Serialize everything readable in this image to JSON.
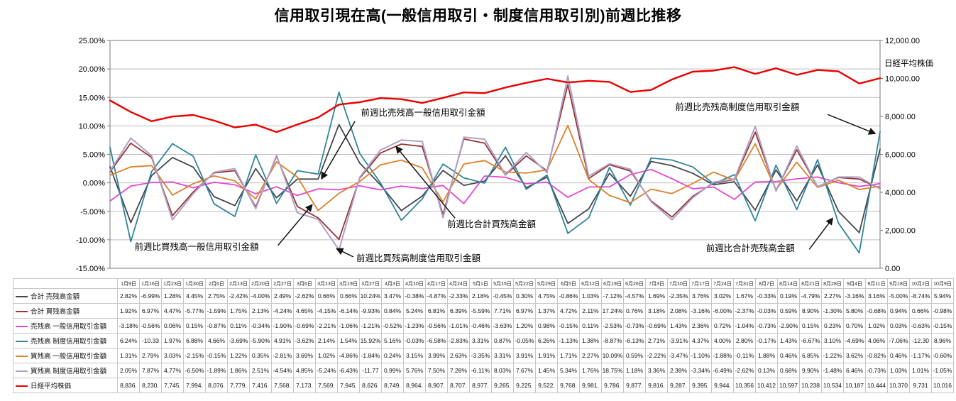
{
  "chart_data": {
    "type": "line",
    "title": "信用取引現在高(一般信用取引・制度信用取引別)前週比推移",
    "grid": true,
    "legend_position": "table-left",
    "left_axis": {
      "min": -15,
      "max": 25,
      "step": 5,
      "ticks": [
        "25.00%",
        "20.00%",
        "15.00%",
        "10.00%",
        "5.00%",
        "0.00%",
        "-5.00%",
        "-10.00%",
        "-15.00%"
      ]
    },
    "right_axis": {
      "min": 0,
      "max": 12000,
      "step": 2000,
      "label": "日経平均株価",
      "ticks": [
        "12,000.00",
        "10,000.00",
        "8,000.00",
        "6,000.00",
        "4,000.00",
        "2,000.00",
        "0.00"
      ]
    },
    "categories": [
      "1月9日",
      "1月16日",
      "1月23日",
      "1月30日",
      "2月6日",
      "2月13日",
      "2月20日",
      "2月27日",
      "3月6日",
      "3月13日",
      "3月19日",
      "3月27日",
      "4月3日",
      "4月10日",
      "4月17日",
      "4月24日",
      "5月1日",
      "5月15日",
      "5月22日",
      "5月29日",
      "6月5日",
      "6月12日",
      "6月19日",
      "6月26日",
      "7月3日",
      "7月10日",
      "7月17日",
      "7月24日",
      "7月31日",
      "8月7日",
      "8月14日",
      "8月21日",
      "8月28日",
      "9月4日",
      "9月11日",
      "9月18日",
      "10月2日",
      "10月9日"
    ],
    "series": [
      {
        "key": "total-sell-balance",
        "name": "合計 売残高金額",
        "color": "#45464f",
        "axis": "left",
        "width": 1.8,
        "values": [
          "2.82%",
          "-6.99%",
          "1.28%",
          "4.45%",
          "2.75%",
          "-2.42%",
          "-4.00%",
          "2.49%",
          "-2.62%",
          "0.66%",
          "0.66%",
          "10.24%",
          "3.47%",
          "-0.38%",
          "-4.87%",
          "-2.33%",
          "2.18%",
          "-0.45%",
          "0.30%",
          "4.75%",
          "-0.86%",
          "1.03%",
          "-7.12%",
          "-4.57%",
          "1.69%",
          "-2.35%",
          "3.76%",
          "3.02%",
          "1.67%",
          "-0.33%",
          "0.19%",
          "-4.79%",
          "2.27%",
          "-3.16%",
          "3.16%",
          "-5.00%",
          "-8.74%",
          "5.94%"
        ]
      },
      {
        "key": "total-buy-balance",
        "name": "合計 買残高金額",
        "color": "#943634",
        "axis": "left",
        "width": 1.8,
        "values": [
          "1.92%",
          "6.97%",
          "4.47%",
          "-5.77%",
          "-1.59%",
          "1.75%",
          "2.13%",
          "-4.24%",
          "4.65%",
          "-4.15%",
          "-6.14%",
          "-9.93%",
          "0.84%",
          "5.24%",
          "6.81%",
          "6.39%",
          "-5.59%",
          "7.71%",
          "6.97%",
          "1.37%",
          "4.72%",
          "2.11%",
          "17.24%",
          "0.76%",
          "3.18%",
          "2.08%",
          "-3.16%",
          "-6.00%",
          "-2.37%",
          "-0.03%",
          "0.59%",
          "8.90%",
          "-1.30%",
          "5.80%",
          "-0.68%",
          "0.94%",
          "0.66%",
          "-0.98%"
        ]
      },
      {
        "key": "sell-general-margin",
        "name": "売残高 一般信用取引金額",
        "color": "#e545d5",
        "axis": "left",
        "width": 1.8,
        "values": [
          "-3.18%",
          "-0.56%",
          "0.06%",
          "0.15%",
          "-0.87%",
          "0.11%",
          "-0.34%",
          "-1.90%",
          "-0.69%",
          "-2.21%",
          "-1.06%",
          "-1.21%",
          "-0.52%",
          "-1.23%",
          "-0.56%",
          "-1.01%",
          "-0.46%",
          "-3.63%",
          "1.20%",
          "0.98%",
          "-0.15%",
          "0.11%",
          "-2.53%",
          "-0.73%",
          "-0.69%",
          "1.43%",
          "2.36%",
          "0.72%",
          "-1.04%",
          "-0.73%",
          "-2.90%",
          "0.15%",
          "0.23%",
          "0.70%",
          "1.02%",
          "0.03%",
          "-0.63%",
          "-0.15%"
        ]
      },
      {
        "key": "sell-standardized-margin",
        "name": "売残高 制度信用取引金額",
        "color": "#31859b",
        "axis": "left",
        "width": 1.8,
        "values": [
          "6.24%",
          "-10.33",
          "1.97%",
          "6.88%",
          "4.66%",
          "-3.69%",
          "-5.90%",
          "4.91%",
          "-3.62%",
          "2.14%",
          "1.54%",
          "15.92%",
          "5.16%",
          "-0.03%",
          "-6.58%",
          "-2.83%",
          "3.31%",
          "0.87%",
          "-0.05%",
          "6.26%",
          "-1.13%",
          "1.38%",
          "-8.87%",
          "-6.13%",
          "2.71%",
          "-3.91%",
          "4.37%",
          "4.00%",
          "2.80%",
          "-0.17%",
          "1.43%",
          "-6.67%",
          "3.10%",
          "-4.69%",
          "4.06%",
          "-7.06%",
          "-12.30",
          "8.96%"
        ]
      },
      {
        "key": "buy-general-margin",
        "name": "買残高 一般信用取引金額",
        "color": "#d9822b",
        "axis": "left",
        "width": 1.8,
        "values": [
          "1.31%",
          "2.79%",
          "3.03%",
          "-2.15%",
          "-0.15%",
          "1.22%",
          "0.35%",
          "-2.81%",
          "3.69%",
          "1.02%",
          "-4.86%",
          "-1.84%",
          "0.24%",
          "3.15%",
          "3.99%",
          "2.63%",
          "-3.35%",
          "3.31%",
          "3.91%",
          "1.91%",
          "1.71%",
          "2.27%",
          "10.09%",
          "0.59%",
          "-2.22%",
          "-3.47%",
          "-1.10%",
          "-1.88%",
          "-0.11%",
          "1.88%",
          "0.46%",
          "6.85%",
          "-1.22%",
          "3.62%",
          "-0.82%",
          "0.46%",
          "-1.17%",
          "-0.60%"
        ]
      },
      {
        "key": "buy-standardized-margin",
        "name": "買残高 制度信用取引金額",
        "color": "#b1a0c7",
        "axis": "left",
        "width": 2,
        "values": [
          "2.05%",
          "7.87%",
          "4.77%",
          "-6.50%",
          "-1.89%",
          "1.86%",
          "2.51%",
          "-4.54%",
          "4.85%",
          "-5.24%",
          "-6.43%",
          "-11.77",
          "0.99%",
          "5.76%",
          "7.50%",
          "7.28%",
          "-6.11%",
          "8.03%",
          "7.67%",
          "1.45%",
          "5.34%",
          "1.76%",
          "18.75%",
          "1.18%",
          "3.36%",
          "2.38%",
          "-3.34%",
          "-6.49%",
          "-2.62%",
          "0.13%",
          "0.68%",
          "9.90%",
          "-1.48%",
          "6.46%",
          "-0.73%",
          "1.03%",
          "1.01%",
          "-1.05%"
        ]
      },
      {
        "key": "nikkei-average",
        "name": "日経平均株価",
        "color": "#ea0000",
        "axis": "right",
        "width": 2.4,
        "values": [
          "8,836.",
          "8,230.",
          "7,745.",
          "7,994.",
          "8,076.",
          "7,779.",
          "7,416.",
          "7,568.",
          "7,173.",
          "7,569.",
          "7,945.",
          "8,626.",
          "8,749.",
          "8,964.",
          "8,907.",
          "8,707.",
          "8,977.",
          "9,265.",
          "9,225.",
          "9,522.",
          "9,768.",
          "9,981.",
          "9,786.",
          "9,877.",
          "9,816.",
          "9,287.",
          "9,395.",
          "9,944.",
          "10,356",
          "10,412",
          "10,597",
          "10,238",
          "10,534",
          "10,187",
          "10,444",
          "10,370",
          "9,731",
          "10,016"
        ]
      }
    ],
    "annotations": [
      {
        "key": "sell-general-margin",
        "text": "前週比売残高一般信用取引金額",
        "label_x": 0.324,
        "label_y": 0.296,
        "tail_x": 0.318,
        "tail_y": 0.355,
        "tip_x": 0.275,
        "tip_y": 0.605
      },
      {
        "key": "sell-standardized-margin",
        "text": "前週比売残高制度信用取引金額",
        "label_x": 0.732,
        "label_y": 0.272,
        "tail_x": 0.932,
        "tail_y": 0.325,
        "tip_x": 0.993,
        "tip_y": 0.408
      },
      {
        "key": "total-buy-balance",
        "text": "前週比合計買残高金額",
        "label_x": 0.436,
        "label_y": 0.785,
        "tail_x": 0.448,
        "tail_y": 0.78,
        "tip_x": 0.372,
        "tip_y": 0.468
      },
      {
        "key": "buy-general-margin",
        "text": "前週比買残高一般信用取引金額",
        "label_x": 0.03,
        "label_y": 0.885,
        "tail_x": 0.218,
        "tail_y": 0.9,
        "tip_x": 0.262,
        "tip_y": 0.723
      },
      {
        "key": "buy-standardized-margin",
        "text": "前週比買残高制度信用取引金額",
        "label_x": 0.318,
        "label_y": 0.935,
        "tail_x": 0.316,
        "tail_y": 0.95,
        "tip_x": 0.295,
        "tip_y": 0.915
      },
      {
        "key": "total-sell-balance",
        "text": "前週比合計売残高金額",
        "label_x": 0.772,
        "label_y": 0.89,
        "tail_x": 0.908,
        "tail_y": 0.917,
        "tip_x": 0.938,
        "tip_y": 0.782
      }
    ],
    "colors": {
      "gridline": "#bdbdbd",
      "plot_border": "#7a7a7a",
      "arrow": "#141414"
    }
  }
}
